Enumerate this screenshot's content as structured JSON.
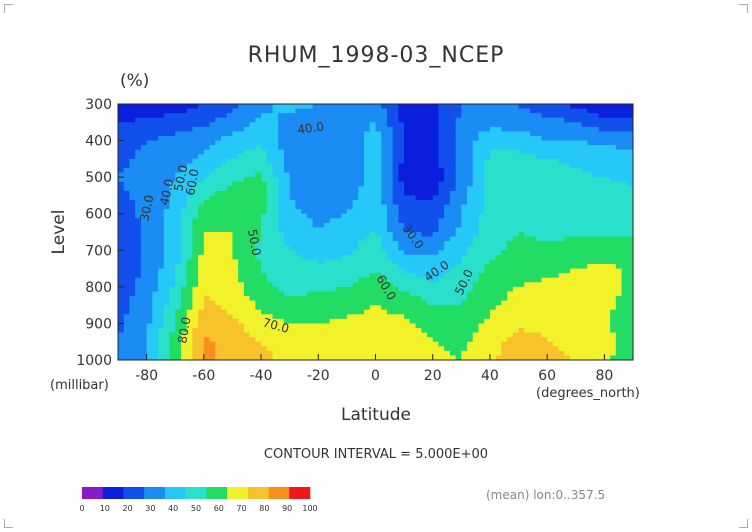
{
  "chart_data": {
    "type": "heatmap",
    "title": "RHUM_1998-03_NCEP",
    "units": "(%)",
    "xlabel": "Latitude",
    "ylabel": "Level",
    "x_units": "(degrees_north)",
    "y_units": "(millibar)",
    "xlim": [
      -90,
      90
    ],
    "ylim": [
      1000,
      300
    ],
    "x_ticks": [
      "-80",
      "-60",
      "-40",
      "-20",
      "0",
      "20",
      "40",
      "60",
      "80"
    ],
    "x_tick_values": [
      -80,
      -60,
      -40,
      -20,
      0,
      20,
      40,
      60,
      80
    ],
    "y_ticks": [
      "300",
      "400",
      "500",
      "600",
      "700",
      "800",
      "900",
      "1000"
    ],
    "y_tick_values": [
      300,
      400,
      500,
      600,
      700,
      800,
      900,
      1000
    ],
    "latitudes": [
      -90,
      -80,
      -70,
      -60,
      -50,
      -40,
      -30,
      -20,
      -10,
      0,
      10,
      20,
      30,
      40,
      50,
      60,
      70,
      80,
      90
    ],
    "levels": [
      300,
      350,
      400,
      450,
      500,
      550,
      600,
      650,
      700,
      750,
      800,
      850,
      900,
      950,
      1000
    ],
    "values": [
      [
        12,
        10,
        14,
        20,
        28,
        38,
        42,
        40,
        38,
        36,
        14,
        16,
        30,
        36,
        30,
        20,
        18,
        10,
        10
      ],
      [
        20,
        22,
        26,
        28,
        34,
        42,
        38,
        35,
        36,
        40,
        18,
        18,
        32,
        36,
        36,
        34,
        30,
        24,
        22
      ],
      [
        26,
        30,
        32,
        36,
        44,
        48,
        35,
        34,
        36,
        44,
        20,
        18,
        32,
        48,
        44,
        40,
        40,
        38,
        38
      ],
      [
        28,
        32,
        36,
        42,
        50,
        55,
        36,
        30,
        34,
        44,
        18,
        16,
        32,
        52,
        54,
        50,
        48,
        44,
        42
      ],
      [
        30,
        34,
        40,
        50,
        58,
        62,
        38,
        30,
        34,
        44,
        16,
        14,
        32,
        54,
        58,
        56,
        52,
        50,
        48
      ],
      [
        28,
        33,
        42,
        58,
        64,
        64,
        40,
        34,
        36,
        46,
        20,
        18,
        36,
        54,
        58,
        56,
        56,
        54,
        52
      ],
      [
        26,
        32,
        44,
        66,
        68,
        62,
        42,
        38,
        40,
        48,
        26,
        24,
        40,
        54,
        58,
        56,
        56,
        56,
        56
      ],
      [
        24,
        32,
        44,
        70,
        70,
        60,
        46,
        40,
        44,
        50,
        30,
        28,
        42,
        56,
        60,
        58,
        58,
        58,
        58
      ],
      [
        22,
        32,
        46,
        72,
        70,
        58,
        50,
        46,
        48,
        56,
        38,
        38,
        48,
        58,
        62,
        62,
        64,
        66,
        64
      ],
      [
        22,
        32,
        48,
        74,
        72,
        60,
        54,
        52,
        54,
        60,
        48,
        44,
        52,
        62,
        66,
        68,
        70,
        72,
        68
      ],
      [
        24,
        34,
        52,
        78,
        74,
        62,
        58,
        58,
        60,
        64,
        58,
        52,
        56,
        66,
        70,
        72,
        72,
        74,
        68
      ],
      [
        26,
        36,
        56,
        82,
        78,
        68,
        62,
        64,
        66,
        70,
        66,
        60,
        60,
        68,
        74,
        74,
        74,
        72,
        66
      ],
      [
        28,
        38,
        60,
        86,
        82,
        74,
        70,
        70,
        72,
        74,
        72,
        66,
        64,
        72,
        78,
        78,
        76,
        72,
        64
      ],
      [
        30,
        40,
        64,
        92,
        86,
        80,
        76,
        76,
        76,
        78,
        76,
        70,
        68,
        76,
        84,
        80,
        78,
        74,
        62
      ],
      [
        32,
        40,
        66,
        92,
        86,
        82,
        78,
        78,
        78,
        80,
        78,
        72,
        70,
        78,
        86,
        82,
        80,
        74,
        60
      ]
    ],
    "contour_labels": [
      "30.0",
      "40.0",
      "50.0",
      "60.0",
      "40.0",
      "50.0",
      "30.0",
      "40.0",
      "50.0",
      "60.0",
      "70.0",
      "80.0"
    ],
    "contour_interval_text": "CONTOUR INTERVAL = 5.000E+00",
    "footnote": "(mean) lon:0..357.5",
    "colorbar": {
      "ticks": [
        "0",
        "10",
        "20",
        "30",
        "40",
        "50",
        "60",
        "70",
        "80",
        "90",
        "100"
      ],
      "colors": [
        "#8a1ac8",
        "#0a1edc",
        "#1250ec",
        "#1a8cf4",
        "#26c8f8",
        "#2ae0cc",
        "#22dc64",
        "#f2f22a",
        "#f8c22c",
        "#f8901e",
        "#ee1a1a"
      ]
    },
    "grid": false
  }
}
